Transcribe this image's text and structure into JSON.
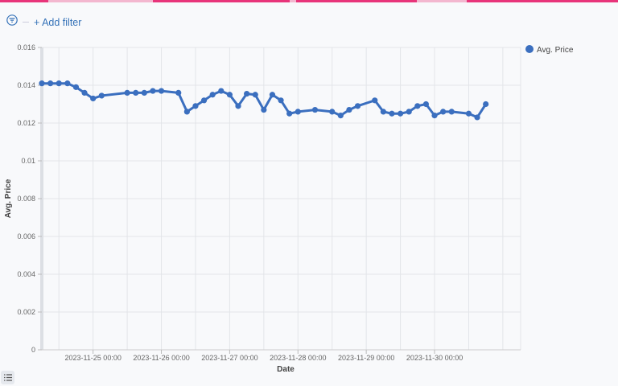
{
  "toolbar": {
    "add_filter": "+ Add filter",
    "filter_icon": "filter-icon"
  },
  "colors": {
    "series": "#3b6fbf",
    "accent": "#e8347a"
  },
  "chart_data": {
    "type": "line",
    "xlabel": "Date",
    "ylabel": "Avg. Price",
    "ylim": [
      0,
      0.016
    ],
    "yticks": [
      "0",
      "0.002",
      "0.004",
      "0.006",
      "0.008",
      "0.01",
      "0.012",
      "0.014",
      "0.016"
    ],
    "xlim": [
      "2023-11-24 06:00",
      "2023-12-01 06:15"
    ],
    "xticks": [
      "2023-11-25 00:00",
      "2023-11-26 00:00",
      "2023-11-27 00:00",
      "2023-11-28 00:00",
      "2023-11-29 00:00",
      "2023-11-30 00:00"
    ],
    "grid": true,
    "legend": "top-right",
    "series": [
      {
        "name": "Avg. Price",
        "points": [
          [
            "2023-11-24 06:00",
            0.0141
          ],
          [
            "2023-11-24 09:00",
            0.0141
          ],
          [
            "2023-11-24 12:00",
            0.0141
          ],
          [
            "2023-11-24 15:00",
            0.0141
          ],
          [
            "2023-11-24 18:00",
            0.0139
          ],
          [
            "2023-11-24 21:00",
            0.0136
          ],
          [
            "2023-11-25 00:00",
            0.0133
          ],
          [
            "2023-11-25 03:00",
            0.01345
          ],
          [
            "2023-11-25 12:00",
            0.0136
          ],
          [
            "2023-11-25 15:00",
            0.0136
          ],
          [
            "2023-11-25 18:00",
            0.0136
          ],
          [
            "2023-11-25 21:00",
            0.0137
          ],
          [
            "2023-11-26 00:00",
            0.0137
          ],
          [
            "2023-11-26 06:00",
            0.0136
          ],
          [
            "2023-11-26 09:00",
            0.0126
          ],
          [
            "2023-11-26 12:00",
            0.0129
          ],
          [
            "2023-11-26 15:00",
            0.0132
          ],
          [
            "2023-11-26 18:00",
            0.0135
          ],
          [
            "2023-11-26 21:00",
            0.0137
          ],
          [
            "2023-11-27 00:00",
            0.0135
          ],
          [
            "2023-11-27 03:00",
            0.0129
          ],
          [
            "2023-11-27 06:00",
            0.01355
          ],
          [
            "2023-11-27 09:00",
            0.0135
          ],
          [
            "2023-11-27 12:00",
            0.0127
          ],
          [
            "2023-11-27 15:00",
            0.0135
          ],
          [
            "2023-11-27 18:00",
            0.0132
          ],
          [
            "2023-11-27 21:00",
            0.0125
          ],
          [
            "2023-11-28 00:00",
            0.0126
          ],
          [
            "2023-11-28 06:00",
            0.0127
          ],
          [
            "2023-11-28 12:00",
            0.0126
          ],
          [
            "2023-11-28 15:00",
            0.0124
          ],
          [
            "2023-11-28 18:00",
            0.0127
          ],
          [
            "2023-11-28 21:00",
            0.0129
          ],
          [
            "2023-11-29 03:00",
            0.0132
          ],
          [
            "2023-11-29 06:00",
            0.0126
          ],
          [
            "2023-11-29 09:00",
            0.0125
          ],
          [
            "2023-11-29 12:00",
            0.0125
          ],
          [
            "2023-11-29 15:00",
            0.0126
          ],
          [
            "2023-11-29 18:00",
            0.0129
          ],
          [
            "2023-11-29 21:00",
            0.013
          ],
          [
            "2023-11-30 00:00",
            0.0124
          ],
          [
            "2023-11-30 03:00",
            0.0126
          ],
          [
            "2023-11-30 06:00",
            0.0126
          ],
          [
            "2023-11-30 12:00",
            0.0125
          ],
          [
            "2023-11-30 15:00",
            0.0123
          ],
          [
            "2023-11-30 18:00",
            0.013
          ]
        ]
      }
    ]
  }
}
